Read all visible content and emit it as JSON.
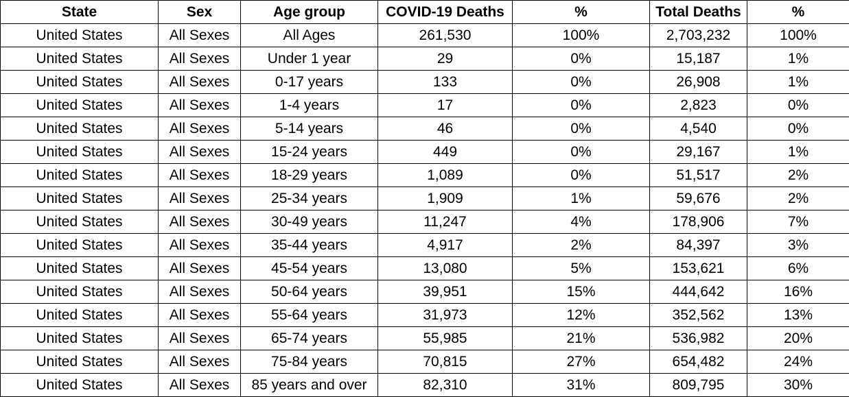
{
  "table": {
    "headers": [
      "State",
      "Sex",
      "Age group",
      "COVID-19 Deaths",
      "%",
      "Total Deaths",
      "%"
    ],
    "rows": [
      [
        "United States",
        "All Sexes",
        "All Ages",
        "261,530",
        "100%",
        "2,703,232",
        "100%"
      ],
      [
        "United States",
        "All Sexes",
        "Under 1 year",
        "29",
        "0%",
        "15,187",
        "1%"
      ],
      [
        "United States",
        "All Sexes",
        "0-17 years",
        "133",
        "0%",
        "26,908",
        "1%"
      ],
      [
        "United States",
        "All Sexes",
        "1-4 years",
        "17",
        "0%",
        "2,823",
        "0%"
      ],
      [
        "United States",
        "All Sexes",
        "5-14 years",
        "46",
        "0%",
        "4,540",
        "0%"
      ],
      [
        "United States",
        "All Sexes",
        "15-24 years",
        "449",
        "0%",
        "29,167",
        "1%"
      ],
      [
        "United States",
        "All Sexes",
        "18-29 years",
        "1,089",
        "0%",
        "51,517",
        "2%"
      ],
      [
        "United States",
        "All Sexes",
        "25-34 years",
        "1,909",
        "1%",
        "59,676",
        "2%"
      ],
      [
        "United States",
        "All Sexes",
        "30-49 years",
        "11,247",
        "4%",
        "178,906",
        "7%"
      ],
      [
        "United States",
        "All Sexes",
        "35-44 years",
        "4,917",
        "2%",
        "84,397",
        "3%"
      ],
      [
        "United States",
        "All Sexes",
        "45-54 years",
        "13,080",
        "5%",
        "153,621",
        "6%"
      ],
      [
        "United States",
        "All Sexes",
        "50-64 years",
        "39,951",
        "15%",
        "444,642",
        "16%"
      ],
      [
        "United States",
        "All Sexes",
        "55-64 years",
        "31,973",
        "12%",
        "352,562",
        "13%"
      ],
      [
        "United States",
        "All Sexes",
        "65-74 years",
        "55,985",
        "21%",
        "536,982",
        "20%"
      ],
      [
        "United States",
        "All Sexes",
        "75-84 years",
        "70,815",
        "27%",
        "654,482",
        "24%"
      ],
      [
        "United States",
        "All Sexes",
        "85 years and over",
        "82,310",
        "31%",
        "809,795",
        "30%"
      ]
    ]
  }
}
